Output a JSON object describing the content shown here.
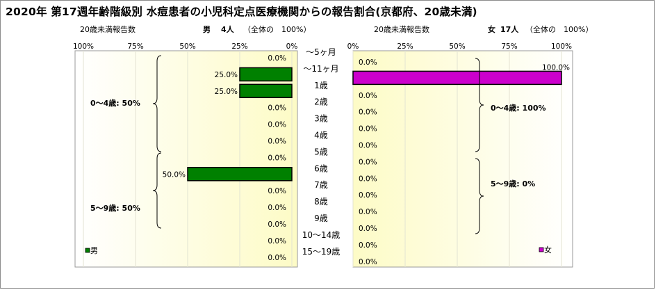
{
  "title": "2020年 第17週年齢階級別 水痘患者の小児科定点医療機関からの報告割合(京都府、20歳未満)",
  "left_panel": {
    "count_label": "20歳未満報告数",
    "sex_label": "男",
    "count": "4人",
    "total_note": "（全体の　100%）",
    "legend": "男",
    "groups": [
      {
        "label": "0～4歳: 50%"
      },
      {
        "label": "5～9歳: 50%"
      }
    ]
  },
  "right_panel": {
    "count_label": "20歳未満報告数",
    "sex_label": "女",
    "count": "17人",
    "total_note": "（全体の　100%）",
    "legend": "女",
    "groups": [
      {
        "label": "0～4歳: 100%"
      },
      {
        "label": "5～9歳: 0%"
      }
    ]
  },
  "chart_data": [
    {
      "type": "bar",
      "orientation": "horizontal",
      "direction": "right-to-left",
      "categories": [
        "～5ヶ月",
        "～11ヶ月",
        "1歳",
        "2歳",
        "3歳",
        "4歳",
        "5歳",
        "6歳",
        "7歳",
        "8歳",
        "9歳",
        "10～14歳",
        "15～19歳"
      ],
      "series": [
        {
          "name": "男",
          "values": [
            0,
            25,
            25,
            0,
            0,
            0,
            0,
            50,
            0,
            0,
            0,
            0,
            0
          ],
          "color": "#008000"
        }
      ],
      "value_labels": [
        "0.0%",
        "25.0%",
        "25.0%",
        "0.0%",
        "0.0%",
        "0.0%",
        "0.0%",
        "50.0%",
        "0.0%",
        "0.0%",
        "0.0%",
        "0.0%",
        "0.0%"
      ],
      "xlim": [
        0,
        100
      ],
      "ticks": [
        "100%",
        "75%",
        "50%",
        "25%",
        "0%"
      ],
      "legend_position": "bottom-left"
    },
    {
      "type": "bar",
      "orientation": "horizontal",
      "direction": "left-to-right",
      "categories": [
        "～5ヶ月",
        "～11ヶ月",
        "1歳",
        "2歳",
        "3歳",
        "4歳",
        "5歳",
        "6歳",
        "7歳",
        "8歳",
        "9歳",
        "10～14歳",
        "15～19歳"
      ],
      "series": [
        {
          "name": "女",
          "values": [
            0,
            100,
            0,
            0,
            0,
            0,
            0,
            0,
            0,
            0,
            0,
            0,
            0
          ],
          "color": "#cc00cc"
        }
      ],
      "value_labels": [
        "0.0%",
        "100.0%",
        "0.0%",
        "0.0%",
        "0.0%",
        "0.0%",
        "0.0%",
        "0.0%",
        "0.0%",
        "0.0%",
        "0.0%",
        "0.0%",
        "0.0%"
      ],
      "xlim": [
        0,
        100
      ],
      "ticks": [
        "0%",
        "25%",
        "50%",
        "75%",
        "100%"
      ],
      "legend_position": "bottom-right"
    }
  ]
}
